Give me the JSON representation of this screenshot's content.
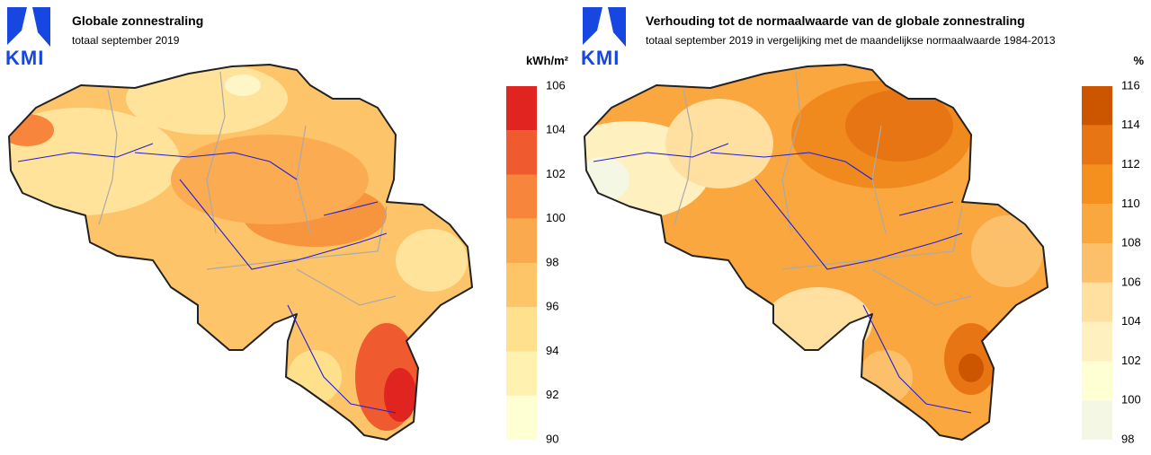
{
  "left": {
    "logo": "KMI",
    "title": "Globale zonnestraling",
    "subtitle": "totaal september 2019",
    "unit": "kWh/m²",
    "legend": {
      "ticks": [
        90,
        92,
        94,
        96,
        98,
        100,
        102,
        104,
        106
      ],
      "colors": [
        "#ffffd4",
        "#fff1b0",
        "#ffe08d",
        "#fec468",
        "#fba94f",
        "#f7853b",
        "#f05a2f",
        "#e0241f"
      ]
    }
  },
  "right": {
    "logo": "KMI",
    "title": "Verhouding tot de normaalwaarde van de globale zonnestraling",
    "subtitle": "totaal september 2019 in vergelijking met de maandelijkse normaalwaarde 1984-2013",
    "unit": "%",
    "legend": {
      "ticks": [
        98,
        100,
        102,
        104,
        106,
        108,
        110,
        112,
        114,
        116
      ],
      "colors": [
        "#f4f7e4",
        "#ffffd4",
        "#fff0c0",
        "#ffe0a0",
        "#fdc06a",
        "#fba740",
        "#f5901f",
        "#e87513",
        "#cc5500"
      ]
    }
  }
}
